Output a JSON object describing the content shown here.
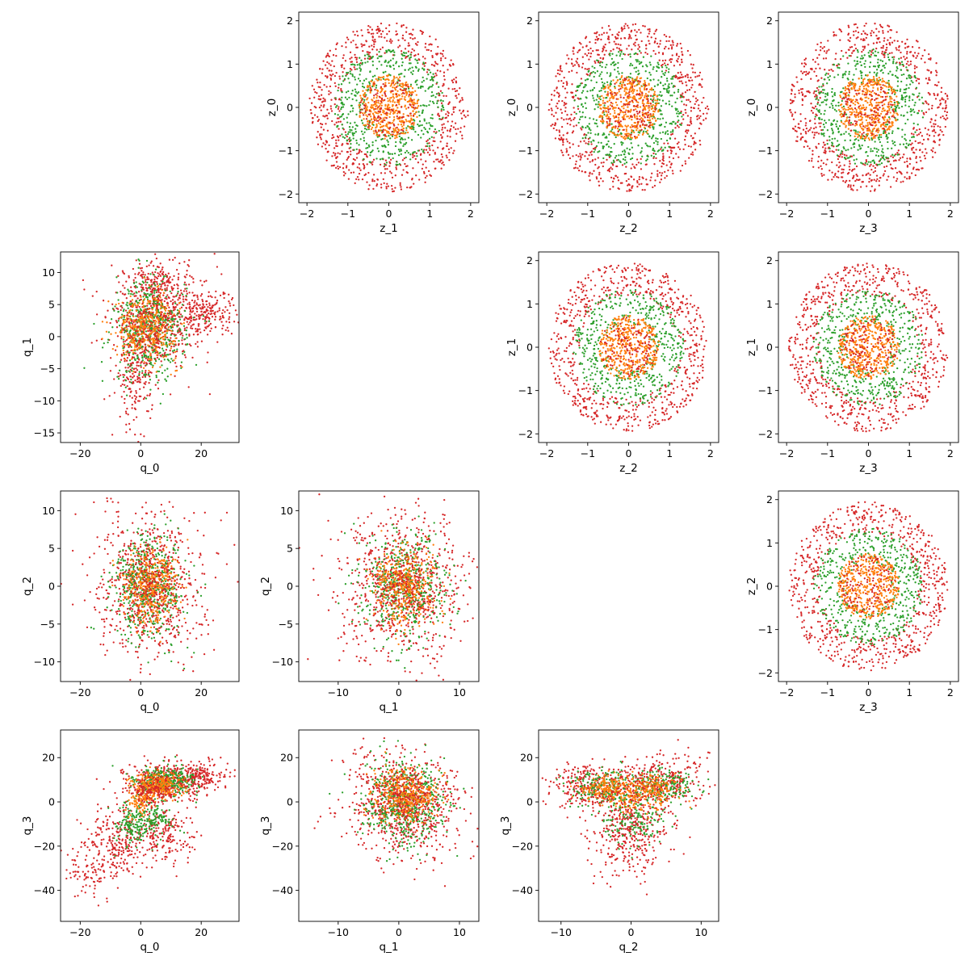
{
  "figure": {
    "marker_colors": [
      "#d62728",
      "#2ca02c",
      "#ff7f0e",
      "#1f77b4"
    ]
  },
  "chart_data": [
    {
      "type": "scatter",
      "xlabel": "z_1",
      "ylabel": "z_0",
      "xlim": [
        -2.2,
        2.2
      ],
      "ylim": [
        -2.2,
        2.2
      ],
      "xticks": [
        -2,
        -1,
        0,
        1,
        2
      ],
      "yticks": [
        -2,
        -1,
        0,
        1,
        2
      ],
      "shape": "rings",
      "series": [
        {
          "color": "#d62728",
          "n": 700,
          "r": [
            1.2,
            1.95
          ]
        },
        {
          "color": "#2ca02c",
          "n": 500,
          "r": [
            0.55,
            1.35
          ]
        },
        {
          "color": "#ff7f0e",
          "n": 450,
          "r": [
            0,
            0.75
          ]
        },
        {
          "color": "#d62728",
          "n": 120,
          "r": [
            0,
            0.7
          ]
        }
      ]
    },
    {
      "type": "scatter",
      "xlabel": "z_2",
      "ylabel": "z_0",
      "xlim": [
        -2.2,
        2.2
      ],
      "ylim": [
        -2.2,
        2.2
      ],
      "xticks": [
        -2,
        -1,
        0,
        1,
        2
      ],
      "yticks": [
        -2,
        -1,
        0,
        1,
        2
      ],
      "shape": "rings",
      "series": [
        {
          "color": "#d62728",
          "n": 700,
          "r": [
            1.2,
            1.95
          ]
        },
        {
          "color": "#2ca02c",
          "n": 500,
          "r": [
            0.55,
            1.35
          ]
        },
        {
          "color": "#ff7f0e",
          "n": 450,
          "r": [
            0,
            0.75
          ]
        },
        {
          "color": "#d62728",
          "n": 120,
          "r": [
            0,
            0.7
          ]
        }
      ]
    },
    {
      "type": "scatter",
      "xlabel": "z_3",
      "ylabel": "z_0",
      "xlim": [
        -2.2,
        2.2
      ],
      "ylim": [
        -2.2,
        2.2
      ],
      "xticks": [
        -2,
        -1,
        0,
        1,
        2
      ],
      "yticks": [
        -2,
        -1,
        0,
        1,
        2
      ],
      "shape": "rings",
      "series": [
        {
          "color": "#d62728",
          "n": 700,
          "r": [
            1.2,
            1.95
          ]
        },
        {
          "color": "#2ca02c",
          "n": 500,
          "r": [
            0.55,
            1.35
          ]
        },
        {
          "color": "#ff7f0e",
          "n": 450,
          "r": [
            0,
            0.75
          ]
        },
        {
          "color": "#d62728",
          "n": 120,
          "r": [
            0,
            0.7
          ]
        }
      ]
    },
    {
      "type": "scatter",
      "xlabel": "q_0",
      "ylabel": "q_1",
      "xlim": [
        -26.5,
        32.5
      ],
      "ylim": [
        -16.5,
        13.2
      ],
      "xticks": [
        -20,
        0,
        20
      ],
      "yticks": [
        -15,
        -10,
        -5,
        0,
        5,
        10
      ],
      "shape": "blobs",
      "series": [
        {
          "color": "#d62728",
          "blobs": [
            {
              "cx": 8,
              "cy": 3,
              "sx": 9,
              "sy": 3.5,
              "n": 500
            },
            {
              "cx": -2,
              "cy": -6,
              "sx": 3,
              "sy": 4,
              "n": 200
            },
            {
              "cx": 22,
              "cy": 4,
              "sx": 5,
              "sy": 1.5,
              "n": 150
            },
            {
              "cx": 5,
              "cy": 8,
              "sx": 5,
              "sy": 2,
              "n": 150
            }
          ]
        },
        {
          "color": "#2ca02c",
          "blobs": [
            {
              "cx": 3,
              "cy": 1,
              "sx": 6,
              "sy": 4,
              "n": 500
            }
          ]
        },
        {
          "color": "#ff7f0e",
          "blobs": [
            {
              "cx": 2,
              "cy": 1.5,
              "sx": 5,
              "sy": 2.5,
              "n": 400
            }
          ]
        },
        {
          "color": "#d62728",
          "blobs": [
            {
              "cx": 2,
              "cy": 1,
              "sx": 5,
              "sy": 3,
              "n": 150
            }
          ]
        }
      ]
    },
    {
      "type": "scatter",
      "xlabel": "z_2",
      "ylabel": "z_1",
      "xlim": [
        -2.2,
        2.2
      ],
      "ylim": [
        -2.2,
        2.2
      ],
      "xticks": [
        -2,
        -1,
        0,
        1,
        2
      ],
      "yticks": [
        -2,
        -1,
        0,
        1,
        2
      ],
      "shape": "rings",
      "series": [
        {
          "color": "#d62728",
          "n": 700,
          "r": [
            1.2,
            1.95
          ]
        },
        {
          "color": "#2ca02c",
          "n": 500,
          "r": [
            0.55,
            1.35
          ]
        },
        {
          "color": "#ff7f0e",
          "n": 450,
          "r": [
            0,
            0.75
          ]
        },
        {
          "color": "#d62728",
          "n": 120,
          "r": [
            0,
            0.7
          ]
        }
      ]
    },
    {
      "type": "scatter",
      "xlabel": "z_3",
      "ylabel": "z_1",
      "xlim": [
        -2.2,
        2.2
      ],
      "ylim": [
        -2.2,
        2.2
      ],
      "xticks": [
        -2,
        -1,
        0,
        1,
        2
      ],
      "yticks": [
        -2,
        -1,
        0,
        1,
        2
      ],
      "shape": "rings",
      "series": [
        {
          "color": "#d62728",
          "n": 700,
          "r": [
            1.2,
            1.95
          ]
        },
        {
          "color": "#2ca02c",
          "n": 500,
          "r": [
            0.55,
            1.35
          ]
        },
        {
          "color": "#ff7f0e",
          "n": 450,
          "r": [
            0,
            0.75
          ]
        },
        {
          "color": "#d62728",
          "n": 120,
          "r": [
            0,
            0.7
          ]
        }
      ]
    },
    {
      "type": "scatter",
      "xlabel": "q_0",
      "ylabel": "q_2",
      "xlim": [
        -26.5,
        32.5
      ],
      "ylim": [
        -12.6,
        12.6
      ],
      "xticks": [
        -20,
        0,
        20
      ],
      "yticks": [
        -10,
        -5,
        0,
        5,
        10
      ],
      "shape": "blobs",
      "series": [
        {
          "color": "#d62728",
          "blobs": [
            {
              "cx": 3,
              "cy": 0,
              "sx": 9,
              "sy": 5,
              "n": 700
            }
          ]
        },
        {
          "color": "#2ca02c",
          "blobs": [
            {
              "cx": 3,
              "cy": 0,
              "sx": 6,
              "sy": 3.5,
              "n": 500
            }
          ]
        },
        {
          "color": "#ff7f0e",
          "blobs": [
            {
              "cx": 3,
              "cy": 0,
              "sx": 4.5,
              "sy": 2.5,
              "n": 400
            }
          ]
        },
        {
          "color": "#d62728",
          "blobs": [
            {
              "cx": 3,
              "cy": 0,
              "sx": 4,
              "sy": 2.5,
              "n": 150
            }
          ]
        }
      ]
    },
    {
      "type": "scatter",
      "xlabel": "q_1",
      "ylabel": "q_2",
      "xlim": [
        -16.5,
        13.2
      ],
      "ylim": [
        -12.6,
        12.6
      ],
      "xticks": [
        -10,
        0,
        10
      ],
      "yticks": [
        -10,
        -5,
        0,
        5,
        10
      ],
      "shape": "blobs",
      "series": [
        {
          "color": "#d62728",
          "blobs": [
            {
              "cx": 1,
              "cy": 0,
              "sx": 5.5,
              "sy": 5,
              "n": 700
            }
          ]
        },
        {
          "color": "#2ca02c",
          "blobs": [
            {
              "cx": 1,
              "cy": 0,
              "sx": 3.5,
              "sy": 3.5,
              "n": 500
            }
          ]
        },
        {
          "color": "#ff7f0e",
          "blobs": [
            {
              "cx": 1,
              "cy": 0,
              "sx": 2.5,
              "sy": 2.5,
              "n": 400
            }
          ]
        },
        {
          "color": "#d62728",
          "blobs": [
            {
              "cx": 1,
              "cy": 0,
              "sx": 2.5,
              "sy": 2.5,
              "n": 150
            }
          ]
        }
      ]
    },
    {
      "type": "scatter",
      "xlabel": "z_3",
      "ylabel": "z_2",
      "xlim": [
        -2.2,
        2.2
      ],
      "ylim": [
        -2.2,
        2.2
      ],
      "xticks": [
        -2,
        -1,
        0,
        1,
        2
      ],
      "yticks": [
        -2,
        -1,
        0,
        1,
        2
      ],
      "shape": "rings",
      "series": [
        {
          "color": "#d62728",
          "n": 700,
          "r": [
            1.2,
            1.95
          ]
        },
        {
          "color": "#2ca02c",
          "n": 500,
          "r": [
            0.55,
            1.35
          ]
        },
        {
          "color": "#ff7f0e",
          "n": 450,
          "r": [
            0,
            0.75
          ]
        },
        {
          "color": "#d62728",
          "n": 120,
          "r": [
            0,
            0.7
          ]
        }
      ]
    },
    {
      "type": "scatter",
      "xlabel": "q_0",
      "ylabel": "q_3",
      "xlim": [
        -26.5,
        32.5
      ],
      "ylim": [
        -54,
        32.5
      ],
      "xticks": [
        -20,
        0,
        20
      ],
      "yticks": [
        -40,
        -20,
        0,
        20
      ],
      "shape": "blobs",
      "series": [
        {
          "color": "#d62728",
          "blobs": [
            {
              "cx": 10,
              "cy": 10,
              "sx": 7,
              "sy": 4,
              "n": 350
            },
            {
              "cx": 20,
              "cy": 12,
              "sx": 4,
              "sy": 3,
              "n": 120
            },
            {
              "cx": -8,
              "cy": -18,
              "sx": 5,
              "sy": 8,
              "n": 250
            },
            {
              "cx": -18,
              "cy": -32,
              "sx": 4,
              "sy": 6,
              "n": 80
            },
            {
              "cx": 8,
              "cy": -15,
              "sx": 5,
              "sy": 6,
              "n": 200
            }
          ]
        },
        {
          "color": "#2ca02c",
          "blobs": [
            {
              "cx": 8,
              "cy": 9,
              "sx": 5,
              "sy": 3.5,
              "n": 300
            },
            {
              "cx": -3,
              "cy": -10,
              "sx": 3,
              "sy": 5,
              "n": 150
            },
            {
              "cx": 5,
              "cy": -8,
              "sx": 3,
              "sy": 4,
              "n": 100
            }
          ]
        },
        {
          "color": "#ff7f0e",
          "blobs": [
            {
              "cx": 6,
              "cy": 7,
              "sx": 4,
              "sy": 3,
              "n": 300
            },
            {
              "cx": 0,
              "cy": 0,
              "sx": 2,
              "sy": 3,
              "n": 100
            }
          ]
        },
        {
          "color": "#d62728",
          "blobs": [
            {
              "cx": 4,
              "cy": 5,
              "sx": 4,
              "sy": 4,
              "n": 150
            }
          ]
        }
      ]
    },
    {
      "type": "scatter",
      "xlabel": "q_1",
      "ylabel": "q_3",
      "xlim": [
        -16.5,
        13.2
      ],
      "ylim": [
        -54,
        32.5
      ],
      "xticks": [
        -10,
        0,
        10
      ],
      "yticks": [
        -40,
        -20,
        0,
        20
      ],
      "shape": "blobs",
      "series": [
        {
          "color": "#d62728",
          "blobs": [
            {
              "cx": 1,
              "cy": -2,
              "sx": 5,
              "sy": 12,
              "n": 700
            }
          ]
        },
        {
          "color": "#2ca02c",
          "blobs": [
            {
              "cx": 1,
              "cy": 0,
              "sx": 3.5,
              "sy": 9,
              "n": 500
            }
          ]
        },
        {
          "color": "#ff7f0e",
          "blobs": [
            {
              "cx": 1,
              "cy": 3,
              "sx": 2.5,
              "sy": 6,
              "n": 400
            }
          ]
        },
        {
          "color": "#d62728",
          "blobs": [
            {
              "cx": 1,
              "cy": 2,
              "sx": 2.5,
              "sy": 6,
              "n": 150
            }
          ]
        }
      ]
    },
    {
      "type": "scatter",
      "xlabel": "q_2",
      "ylabel": "q_3",
      "xlim": [
        -13.2,
        12.5
      ],
      "ylim": [
        -54,
        32.5
      ],
      "xticks": [
        -10,
        0,
        10
      ],
      "yticks": [
        -40,
        -20,
        0,
        20
      ],
      "shape": "blobs",
      "series": [
        {
          "color": "#d62728",
          "blobs": [
            {
              "cx": -6,
              "cy": 8,
              "sx": 3,
              "sy": 5,
              "n": 250
            },
            {
              "cx": 5,
              "cy": 10,
              "sx": 3,
              "sy": 6,
              "n": 250
            },
            {
              "cx": 0,
              "cy": -15,
              "sx": 3,
              "sy": 9,
              "n": 300
            }
          ]
        },
        {
          "color": "#2ca02c",
          "blobs": [
            {
              "cx": -4,
              "cy": 6,
              "sx": 2.5,
              "sy": 4,
              "n": 200
            },
            {
              "cx": 4,
              "cy": 7,
              "sx": 2.5,
              "sy": 4,
              "n": 200
            },
            {
              "cx": 0,
              "cy": -8,
              "sx": 2.5,
              "sy": 6,
              "n": 150
            }
          ]
        },
        {
          "color": "#ff7f0e",
          "blobs": [
            {
              "cx": -3,
              "cy": 6,
              "sx": 2,
              "sy": 3,
              "n": 180
            },
            {
              "cx": 2.5,
              "cy": 6,
              "sx": 2,
              "sy": 3,
              "n": 180
            },
            {
              "cx": 0,
              "cy": 0,
              "sx": 2,
              "sy": 4,
              "n": 80
            }
          ]
        },
        {
          "color": "#d62728",
          "blobs": [
            {
              "cx": 0,
              "cy": 0,
              "sx": 3,
              "sy": 8,
              "n": 150
            }
          ]
        }
      ]
    }
  ]
}
